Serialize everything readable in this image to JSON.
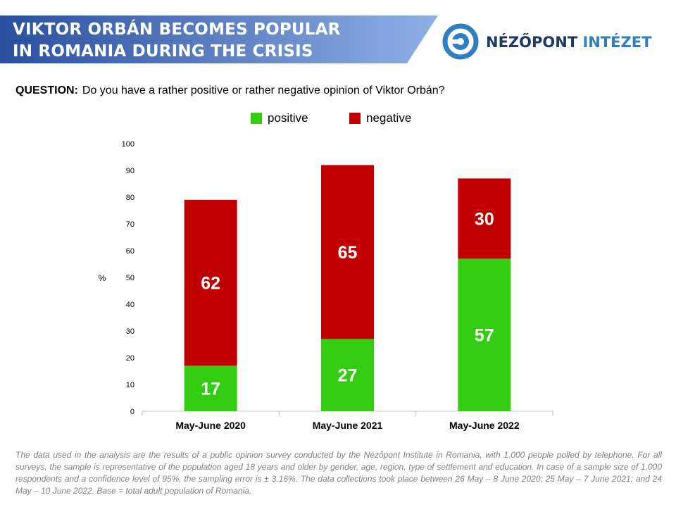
{
  "header": {
    "title_line1": "VIKTOR ORBÁN BECOMES POPULAR",
    "title_line2": "IN ROMANIA DURING THE CRISIS",
    "logo_text_part1": "NÉZŐPONT ",
    "logo_text_part2": "INTÉZET",
    "colors": {
      "banner_dark": "#2a4f9f",
      "banner_light": "#8fb0e6",
      "logo_dark": "#1f3864",
      "logo_accent": "#2f7fc1"
    }
  },
  "question": {
    "label": "QUESTION:",
    "text": "Do you have a rather positive or rather negative opinion of Viktor Orbán?"
  },
  "chart_data": {
    "type": "bar",
    "stacked": true,
    "categories": [
      "May-June 2020",
      "May-June 2021",
      "May-June 2022"
    ],
    "series": [
      {
        "name": "positive",
        "values": [
          17,
          27,
          57
        ],
        "color": "#33cc11"
      },
      {
        "name": "negative",
        "values": [
          62,
          65,
          30
        ],
        "color": "#c00000"
      }
    ],
    "ylabel": "%",
    "ylim": [
      0,
      100
    ],
    "yticks": [
      0,
      10,
      20,
      30,
      40,
      50,
      60,
      70,
      80,
      90,
      100
    ],
    "grid": false,
    "legend_position": "top-center"
  },
  "footnote": "The data used in the analysis are the results of a public opinion survey conducted by the Nézőpont Institute in Romania, with 1,000 people polled by telephone. For all surveys, the sample is representative of the population aged 18 years and older by gender, age, region, type of settlement and education. In case of a sample size of 1,000 respondents and a confidence level of 95%, the sampling error is ± 3.16%. The data collections took place between 26 May – 8 June 2020; 25 May – 7 June 2021; and 24 May – 10 June 2022. Base = total adult population of Romania."
}
